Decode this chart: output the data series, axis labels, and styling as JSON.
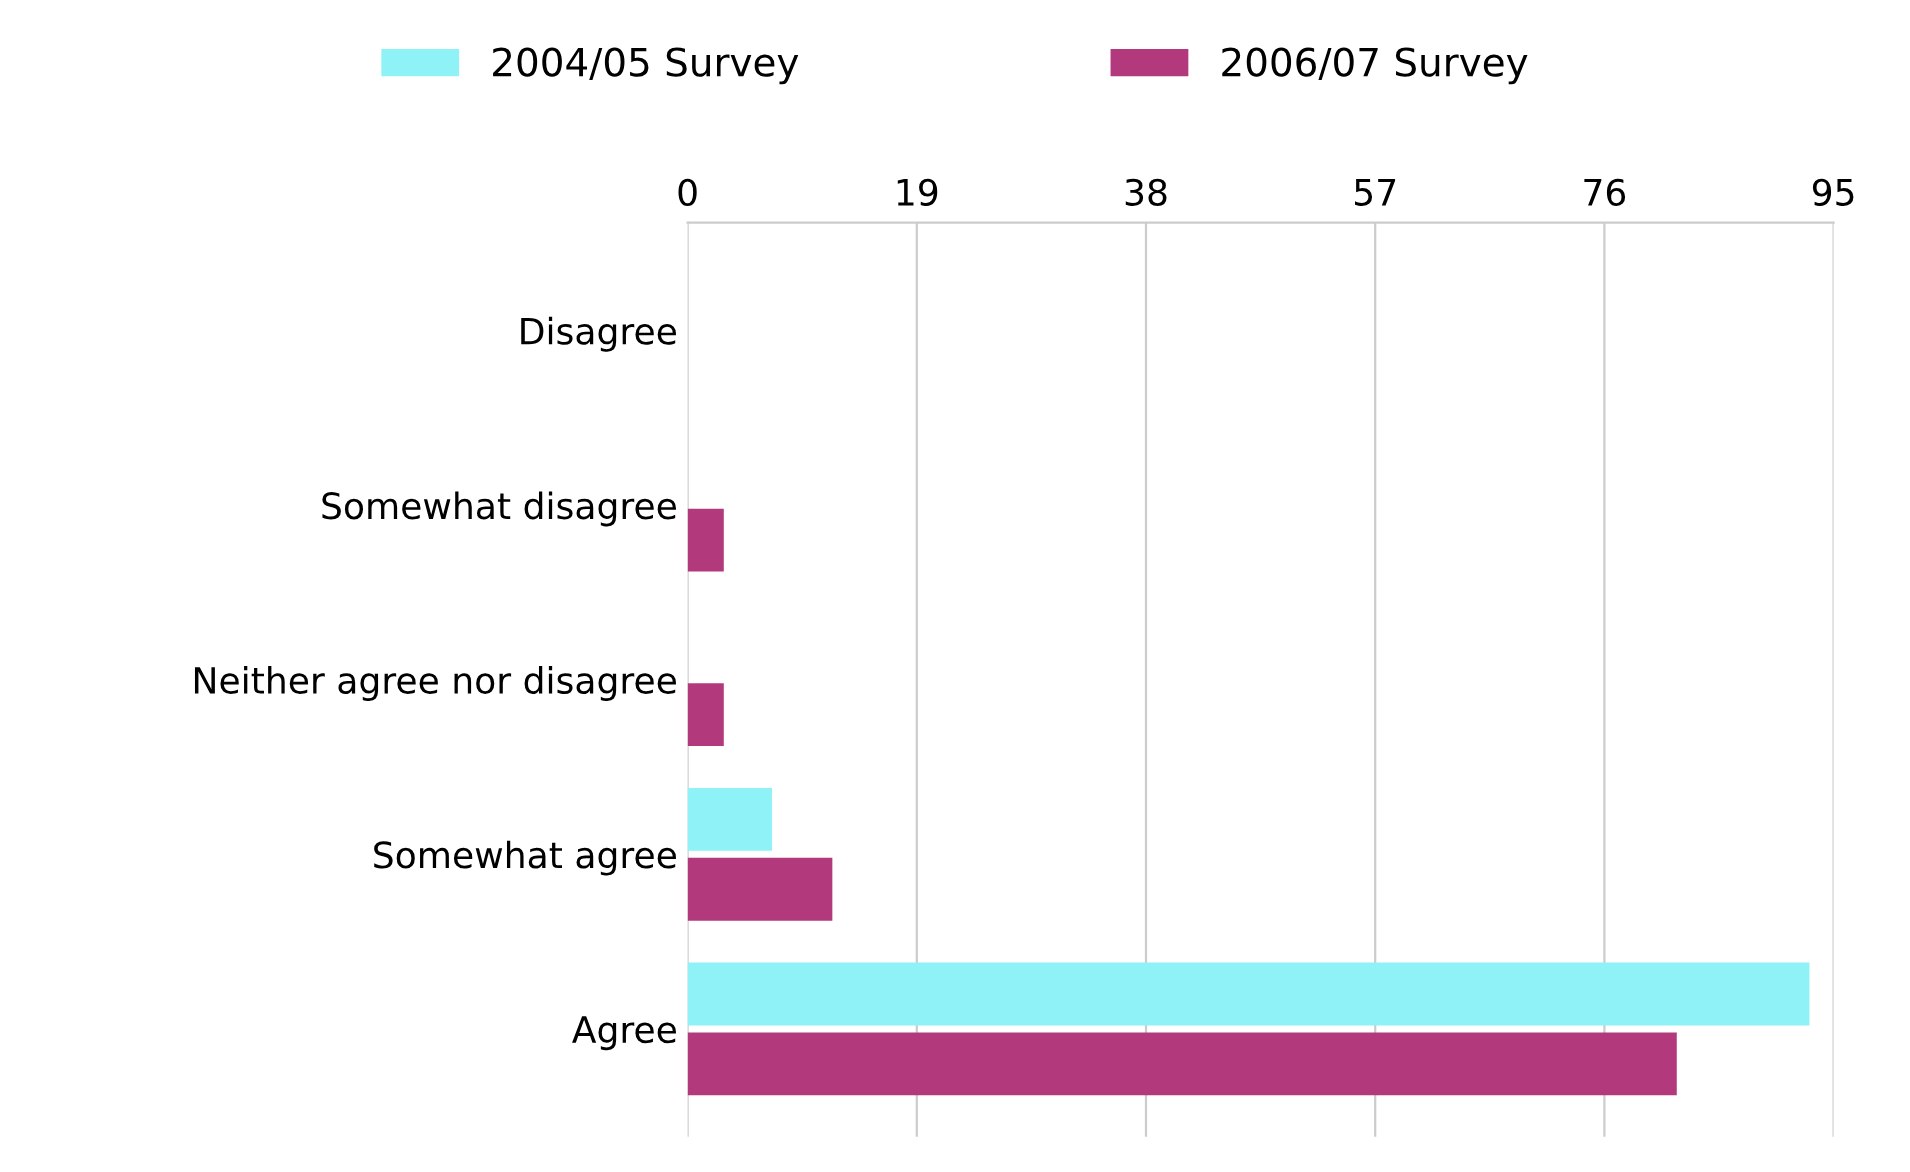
{
  "chart_data": {
    "type": "bar",
    "orientation": "horizontal",
    "categories": [
      "Disagree",
      "Somewhat disagree",
      "Neither agree nor disagree",
      "Somewhat agree",
      "Agree"
    ],
    "series": [
      {
        "name": "2004/05 Survey",
        "color": "#8ef2f7",
        "values": [
          0,
          0,
          0,
          7,
          93
        ]
      },
      {
        "name": "2006/07 Survey",
        "color": "#b23a7c",
        "values": [
          0,
          3,
          3,
          12,
          82
        ]
      }
    ],
    "xlim": [
      0,
      95
    ],
    "xticks": [
      0,
      19,
      38,
      57,
      76,
      95
    ],
    "grid": "x",
    "legend": "top"
  }
}
